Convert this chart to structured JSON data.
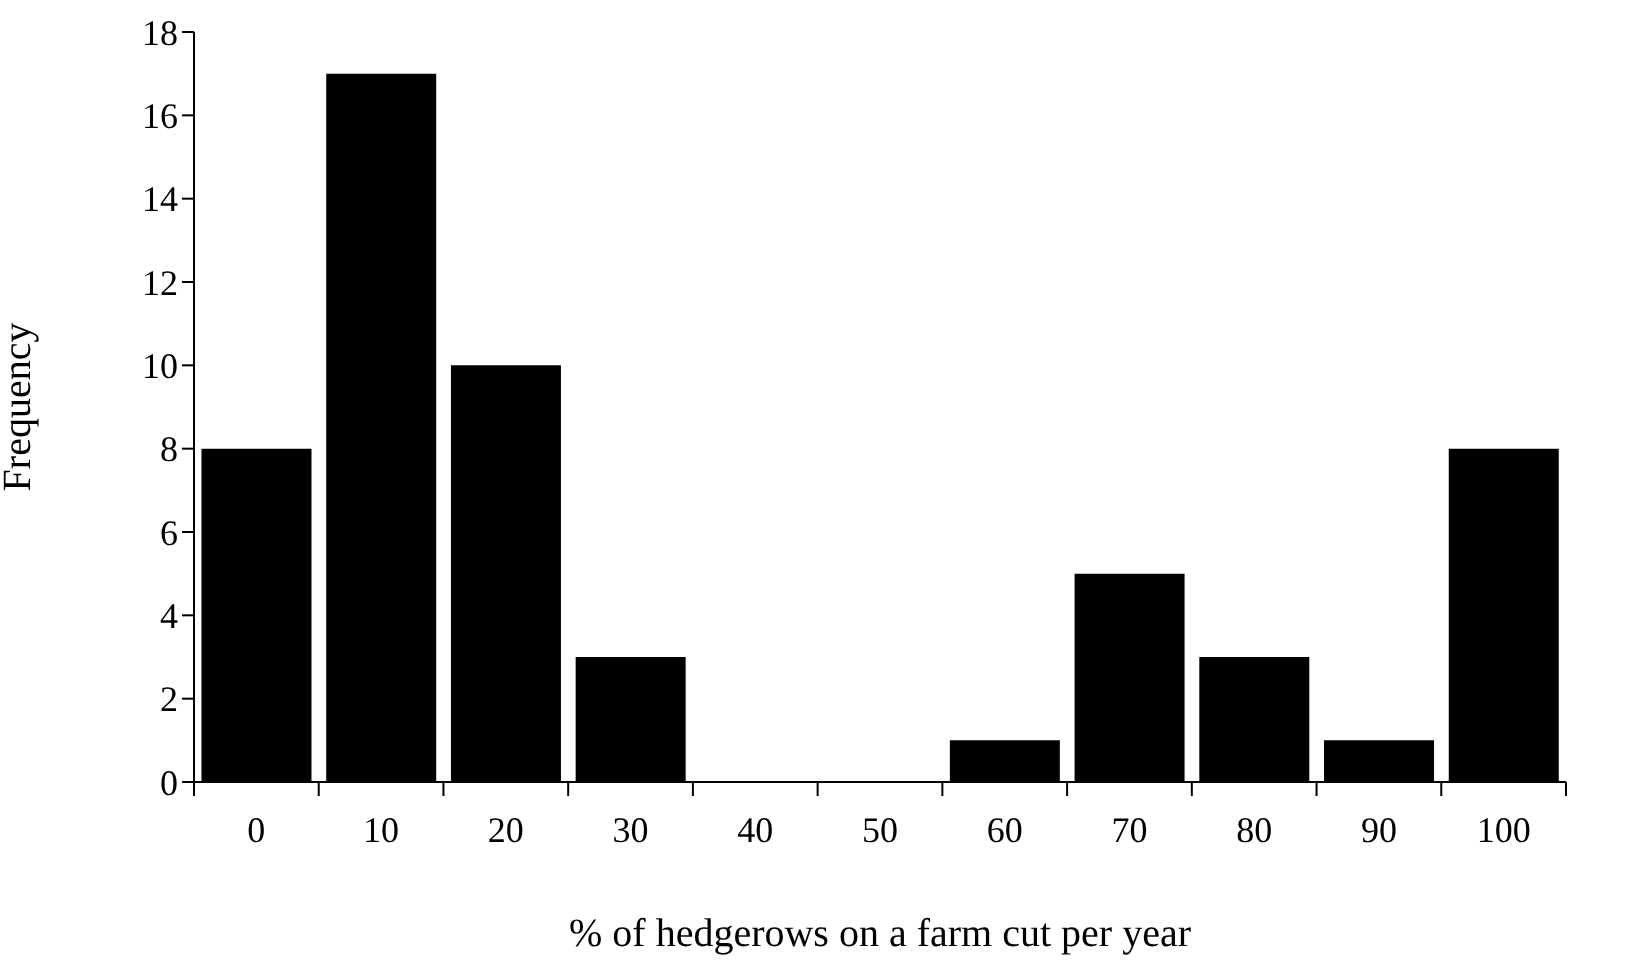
{
  "chart_data": {
    "type": "bar",
    "xlabel": "% of hedgerows on a farm cut per year",
    "ylabel": "Frequency",
    "categories": [
      "0",
      "10",
      "20",
      "30",
      "40",
      "50",
      "60",
      "70",
      "80",
      "90",
      "100"
    ],
    "values": [
      8,
      17,
      10,
      3,
      0,
      0,
      1,
      5,
      3,
      1,
      8
    ],
    "color": "#000000",
    "ylim": [
      0,
      18
    ],
    "yticks": [
      0,
      2,
      4,
      6,
      8,
      10,
      12,
      14,
      16,
      18
    ],
    "grid": false,
    "legend": false
  }
}
